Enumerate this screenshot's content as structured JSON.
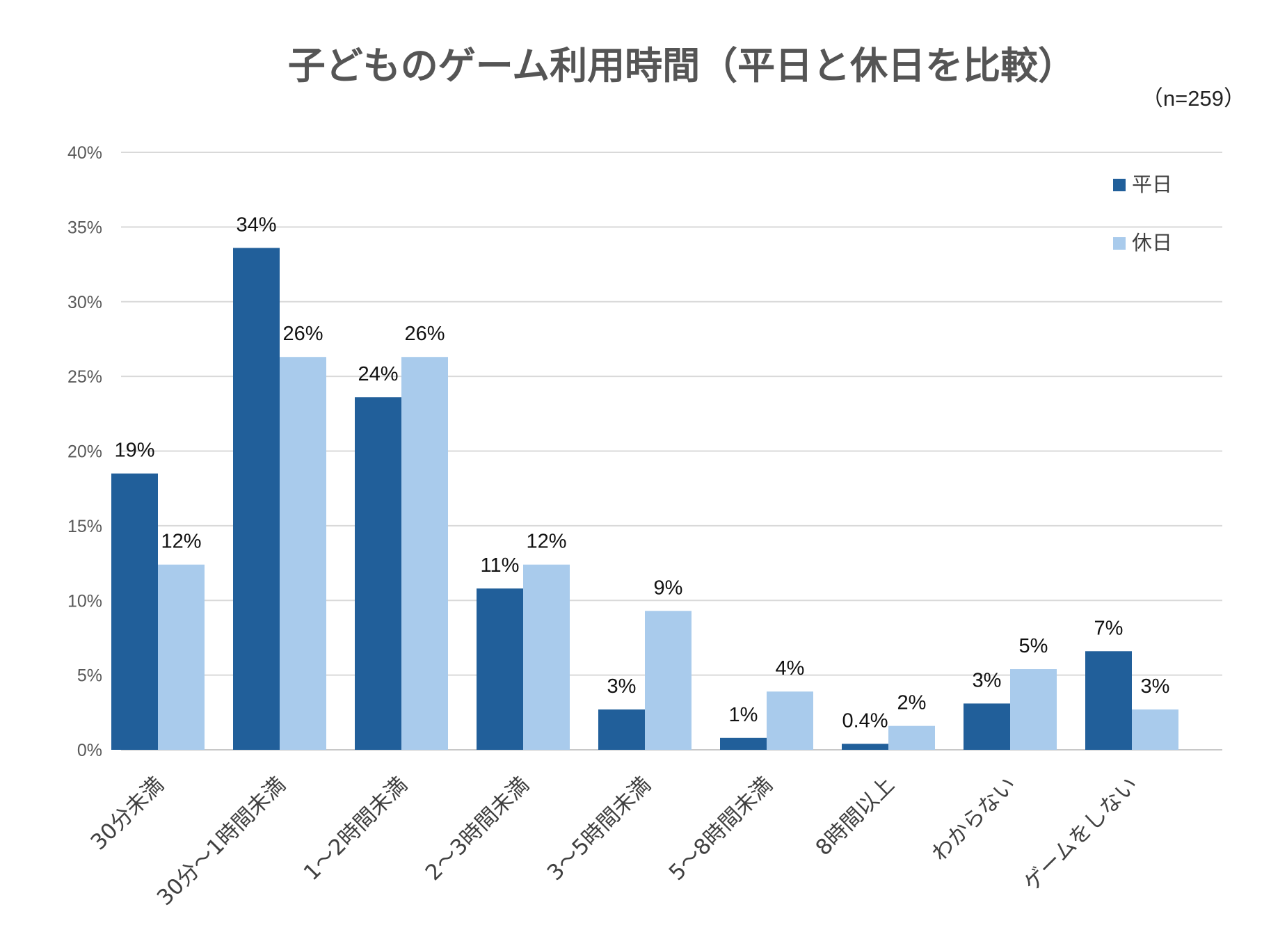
{
  "chart_data": {
    "type": "bar",
    "title": "子どものゲーム利用時間（平日と休日を比較）",
    "sample_note": "（n=259）",
    "categories": [
      "30分未満",
      "30分～1時間未満",
      "1～2時間未満",
      "2～3時間未満",
      "3～5時間未満",
      "5～8時間未満",
      "8時間以上",
      "わからない",
      "ゲームをしない"
    ],
    "series": [
      {
        "name": "平日",
        "color": "#215f9a",
        "values": [
          18.5,
          33.6,
          23.6,
          10.8,
          2.7,
          0.8,
          0.4,
          3.1,
          6.6
        ],
        "labels": [
          "19%",
          "34%",
          "24%",
          "11%",
          "3%",
          "1%",
          "0.4%",
          "3%",
          "7%"
        ]
      },
      {
        "name": "休日",
        "color": "#a9cbec",
        "values": [
          12.4,
          26.3,
          26.3,
          12.4,
          9.3,
          3.9,
          1.6,
          5.4,
          2.7
        ],
        "labels": [
          "12%",
          "26%",
          "26%",
          "12%",
          "9%",
          "4%",
          "2%",
          "5%",
          "3%"
        ]
      }
    ],
    "ylim": [
      0,
      40
    ],
    "yticks": [
      0,
      5,
      10,
      15,
      20,
      25,
      30,
      35,
      40
    ],
    "ytick_labels": [
      "0%",
      "5%",
      "10%",
      "15%",
      "20%",
      "25%",
      "30%",
      "35%",
      "40%"
    ],
    "grid": true,
    "legend_position": "top-right",
    "xlabel": "",
    "ylabel": ""
  }
}
